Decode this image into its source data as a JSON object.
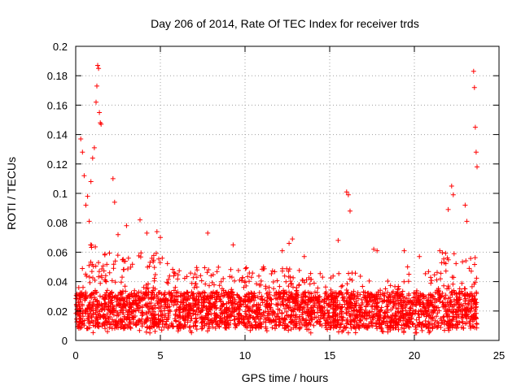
{
  "chart_data": {
    "type": "scatter",
    "title": "Day 206 of 2014, Rate Of TEC Index for receiver trds",
    "xlabel": "GPS time / hours",
    "ylabel": "ROTI / TECUs",
    "xlim": [
      0,
      25
    ],
    "ylim": [
      0,
      0.2
    ],
    "x_ticks": [
      0,
      5,
      10,
      15,
      20,
      25
    ],
    "x_tick_labels": [
      "0",
      "5",
      "10",
      "15",
      "20",
      "25"
    ],
    "y_ticks": [
      0,
      0.02,
      0.04,
      0.06,
      0.08,
      0.1,
      0.12,
      0.14,
      0.16,
      0.18,
      0.2
    ],
    "y_tick_labels": [
      "0",
      "0.02",
      "0.04",
      "0.06",
      "0.08",
      "0.1",
      "0.12",
      "0.14",
      "0.16",
      "0.18",
      "0.2"
    ],
    "grid": true,
    "marker": "+",
    "color": "#ff0000",
    "x_data_range": [
      0,
      23.7
    ],
    "series": [
      {
        "name": "ROTI",
        "x": [
          0.3,
          0.4,
          0.5,
          0.6,
          0.7,
          0.8,
          0.9,
          1.0,
          1.1,
          1.2,
          1.25,
          1.3,
          1.35,
          1.4,
          1.45,
          1.5,
          2.2,
          2.3,
          2.5,
          3.0,
          3.8,
          4.2,
          4.8,
          5.0,
          7.8,
          9.3,
          12.2,
          12.6,
          12.8,
          13.5,
          15.5,
          16.0,
          16.1,
          16.2,
          17.6,
          17.8,
          19.4,
          19.6,
          20.3,
          21.5,
          22.0,
          22.2,
          22.3,
          23.0,
          23.1,
          23.5,
          23.55,
          23.6,
          23.65,
          23.7
        ],
        "y": [
          0.137,
          0.128,
          0.112,
          0.092,
          0.098,
          0.081,
          0.108,
          0.124,
          0.131,
          0.162,
          0.173,
          0.187,
          0.185,
          0.155,
          0.148,
          0.147,
          0.11,
          0.094,
          0.072,
          0.078,
          0.082,
          0.073,
          0.074,
          0.07,
          0.073,
          0.065,
          0.061,
          0.066,
          0.069,
          0.057,
          0.068,
          0.101,
          0.099,
          0.088,
          0.062,
          0.061,
          0.061,
          0.05,
          0.057,
          0.061,
          0.089,
          0.105,
          0.099,
          0.092,
          0.081,
          0.183,
          0.172,
          0.145,
          0.128,
          0.118
        ]
      }
    ]
  }
}
